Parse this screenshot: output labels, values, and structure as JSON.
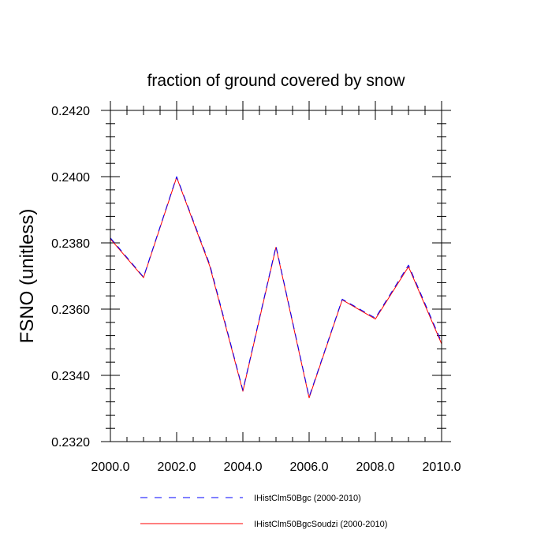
{
  "chart_data": {
    "type": "line",
    "title": "fraction of ground covered by snow",
    "xlabel": "",
    "ylabel": "FSNO  (unitless)",
    "xlim": [
      2000,
      2010
    ],
    "ylim": [
      0.232,
      0.242
    ],
    "x_ticks": [
      2000,
      2002,
      2004,
      2006,
      2008,
      2010
    ],
    "x_tick_labels": [
      "2000.0",
      "2002.0",
      "2004.0",
      "2006.0",
      "2008.0",
      "2010.0"
    ],
    "y_ticks": [
      0.232,
      0.234,
      0.236,
      0.238,
      0.24,
      0.242
    ],
    "y_tick_labels": [
      "0.2320",
      "0.2340",
      "0.2360",
      "0.2380",
      "0.2400",
      "0.2420"
    ],
    "grid": false,
    "legend_position": "bottom",
    "x": [
      2000,
      2001,
      2002,
      2003,
      2004,
      2005,
      2006,
      2007,
      2008,
      2009,
      2010
    ],
    "series": [
      {
        "name": "IHistClm50Bgc (2000-2010)",
        "color": "#0000ff",
        "dash": "dashed",
        "values": [
          0.23815,
          0.23697,
          0.24,
          0.23735,
          0.23355,
          0.2379,
          0.23335,
          0.2363,
          0.23573,
          0.23733,
          0.235
        ]
      },
      {
        "name": "IHistClm50BgcSoudzi (2000-2010)",
        "color": "#ff0000",
        "dash": "solid",
        "values": [
          0.23812,
          0.23695,
          0.23998,
          0.2373,
          0.23352,
          0.23787,
          0.23332,
          0.23628,
          0.2357,
          0.23728,
          0.23495
        ]
      }
    ]
  }
}
